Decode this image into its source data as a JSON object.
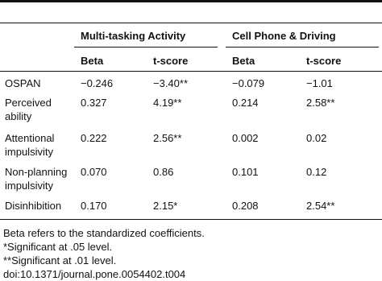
{
  "table": {
    "group_headers": [
      "Multi-tasking Activity",
      "Cell Phone & Driving"
    ],
    "column_headers": [
      "Beta",
      "t-score",
      "Beta",
      "t-score"
    ],
    "rows": [
      [
        "OSPAN",
        "−0.246",
        "−3.40**",
        "−0.079",
        "−1.01"
      ],
      [
        "Perceived ability",
        "0.327",
        "4.19**",
        "0.214",
        "2.58**"
      ],
      [
        "Attentional impulsivity",
        "0.222",
        "2.56**",
        "0.002",
        "0.02"
      ],
      [
        "Non-planning impulsivity",
        "0.070",
        "0.86",
        "0.101",
        "0.12"
      ],
      [
        "Disinhibition",
        "0.170",
        "2.15*",
        "0.208",
        "2.54**"
      ]
    ]
  },
  "footnotes": [
    "Beta refers to the standardized coefficients.",
    "*Significant at .05 level.",
    "**Significant at .01 level.",
    "doi:10.1371/journal.pone.0054402.t004"
  ]
}
